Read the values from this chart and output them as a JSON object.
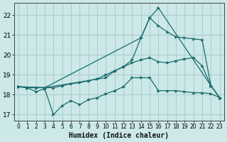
{
  "title": "",
  "xlabel": "Humidex (Indice chaleur)",
  "bg_color": "#cce8e8",
  "line_color": "#1a6b6b",
  "grid_color": "#aacccc",
  "xlim": [
    -0.5,
    23.5
  ],
  "ylim": [
    16.7,
    22.6
  ],
  "yticks": [
    17,
    18,
    19,
    20,
    21,
    22
  ],
  "xticks": [
    0,
    1,
    2,
    3,
    4,
    5,
    6,
    7,
    8,
    9,
    10,
    11,
    12,
    13,
    14,
    15,
    16,
    17,
    18,
    19,
    20,
    21,
    22,
    23
  ],
  "line1_x": [
    0,
    1,
    2,
    3,
    4,
    5,
    6,
    7,
    8,
    9,
    10,
    11,
    12,
    13,
    14,
    15,
    16,
    17,
    18,
    19,
    20,
    21,
    22,
    23
  ],
  "line1_y": [
    18.4,
    18.35,
    18.15,
    18.3,
    17.0,
    17.45,
    17.7,
    17.5,
    17.75,
    17.85,
    18.05,
    18.2,
    18.4,
    18.85,
    18.85,
    18.85,
    18.2,
    18.2,
    18.2,
    18.15,
    18.1,
    18.1,
    18.05,
    17.85
  ],
  "line2_x": [
    0,
    1,
    2,
    3,
    4,
    5,
    6,
    7,
    8,
    9,
    10,
    11,
    12,
    13,
    14,
    15,
    16,
    17,
    18,
    19,
    20,
    21,
    22,
    23
  ],
  "line2_y": [
    18.4,
    18.35,
    18.35,
    18.35,
    18.35,
    18.45,
    18.55,
    18.6,
    18.7,
    18.8,
    19.0,
    19.2,
    19.4,
    19.6,
    19.75,
    19.85,
    19.65,
    19.6,
    19.7,
    19.8,
    19.85,
    19.45,
    18.45,
    17.85
  ],
  "line3_x": [
    0,
    3,
    10,
    11,
    12,
    13,
    14,
    15,
    16,
    17,
    18,
    19,
    20,
    21,
    22,
    23
  ],
  "line3_y": [
    18.4,
    18.35,
    18.85,
    19.2,
    19.4,
    19.75,
    20.85,
    21.85,
    21.45,
    21.15,
    20.9,
    20.85,
    20.8,
    20.75,
    18.45,
    17.85
  ],
  "line4_x": [
    0,
    3,
    14,
    15,
    16,
    22,
    23
  ],
  "line4_y": [
    18.4,
    18.35,
    20.85,
    21.85,
    22.35,
    18.45,
    17.85
  ]
}
